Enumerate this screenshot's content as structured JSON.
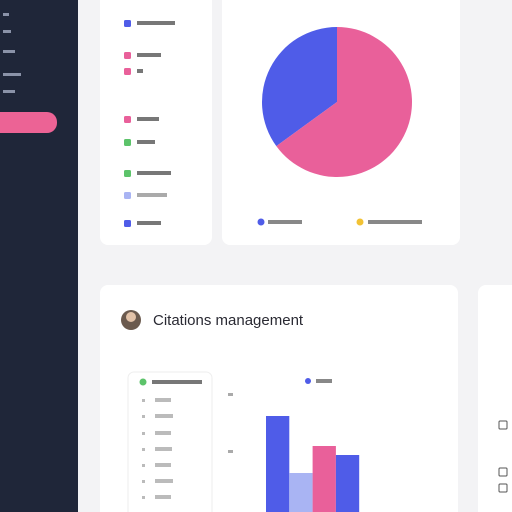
{
  "heading": "Citations management",
  "chart_data": [
    {
      "type": "pie",
      "values": [
        35,
        65
      ],
      "colors": [
        "#4f5ce8",
        "#e9609a"
      ]
    },
    {
      "type": "bar",
      "values": [
        96,
        39,
        66,
        57
      ],
      "colors": [
        "#4f5ce8",
        "#a9b4f3",
        "#e9609a",
        "#4f5ce8"
      ],
      "ylim": [
        0,
        130
      ]
    }
  ]
}
